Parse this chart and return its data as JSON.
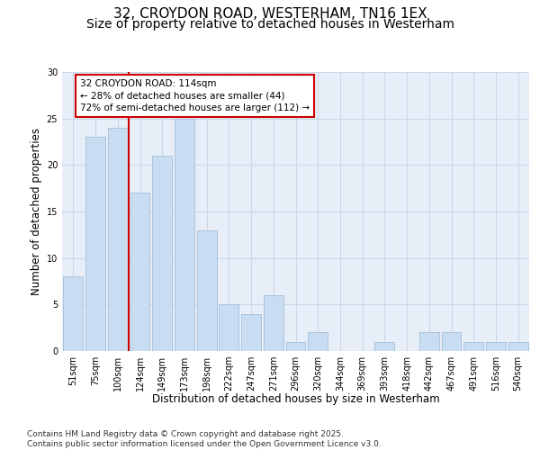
{
  "title_line1": "32, CROYDON ROAD, WESTERHAM, TN16 1EX",
  "title_line2": "Size of property relative to detached houses in Westerham",
  "xlabel": "Distribution of detached houses by size in Westerham",
  "ylabel": "Number of detached properties",
  "categories": [
    "51sqm",
    "75sqm",
    "100sqm",
    "124sqm",
    "149sqm",
    "173sqm",
    "198sqm",
    "222sqm",
    "247sqm",
    "271sqm",
    "296sqm",
    "320sqm",
    "344sqm",
    "369sqm",
    "393sqm",
    "418sqm",
    "442sqm",
    "467sqm",
    "491sqm",
    "516sqm",
    "540sqm"
  ],
  "values": [
    8,
    23,
    24,
    17,
    21,
    25,
    13,
    5,
    4,
    6,
    1,
    2,
    0,
    0,
    1,
    0,
    2,
    2,
    1,
    1,
    1
  ],
  "bar_color": "#c9ddf2",
  "bar_edge_color": "#aac4e0",
  "grid_color": "#ccd6e8",
  "bg_color": "#e8eef8",
  "vline_x_index": 2.5,
  "vline_color": "#cc0000",
  "annotation_text": "32 CROYDON ROAD: 114sqm\n← 28% of detached houses are smaller (44)\n72% of semi-detached houses are larger (112) →",
  "annotation_box_color": "#ffffff",
  "annotation_box_edge": "#cc0000",
  "ylim": [
    0,
    30
  ],
  "footnote": "Contains HM Land Registry data © Crown copyright and database right 2025.\nContains public sector information licensed under the Open Government Licence v3.0.",
  "title_fontsize": 11,
  "subtitle_fontsize": 10,
  "label_fontsize": 8.5,
  "tick_fontsize": 7,
  "annot_fontsize": 7.5,
  "footnote_fontsize": 6.5
}
